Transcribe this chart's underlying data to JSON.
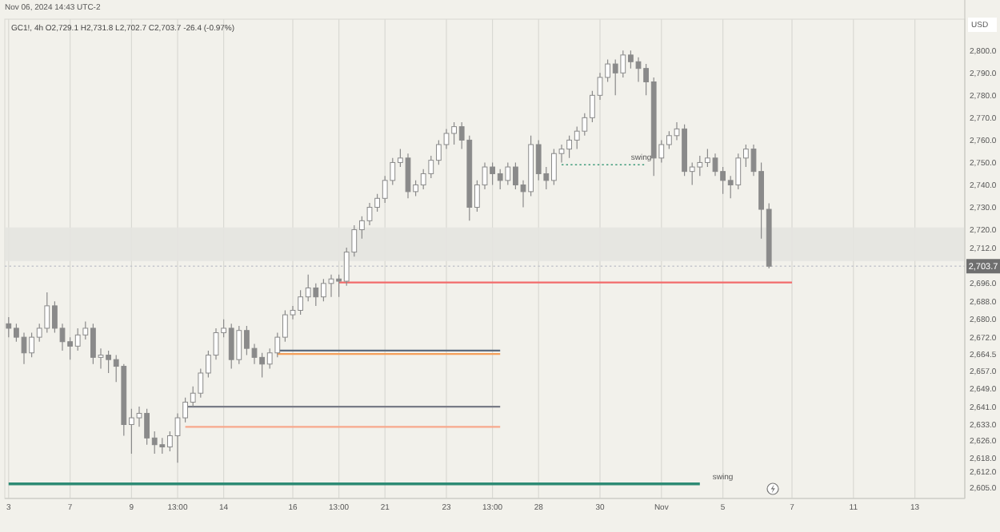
{
  "chart_data": {
    "type": "candlestick",
    "title": "GC1!, 4h O2,729.1 H2,731.8 L2,702.7 C2,703.7 -26.4 (-0.97%)",
    "subtitle": "Nov 06, 2024 14:43 UTC-2",
    "ylabel": "USD",
    "categories": [
      "3",
      null,
      null,
      null,
      null,
      null,
      null,
      null,
      "7",
      null,
      null,
      null,
      null,
      null,
      null,
      null,
      "9",
      null,
      null,
      null,
      null,
      null,
      "13:00",
      null,
      null,
      null,
      null,
      null,
      "14",
      null,
      null,
      null,
      null,
      null,
      null,
      null,
      null,
      "16",
      null,
      null,
      null,
      null,
      null,
      "13:00",
      null,
      null,
      null,
      null,
      null,
      "21",
      null,
      null,
      null,
      null,
      null,
      null,
      null,
      "23",
      null,
      null,
      null,
      null,
      null,
      "13:00",
      null,
      null,
      null,
      null,
      null,
      "28",
      null,
      null,
      null,
      null,
      null,
      null,
      null,
      "30",
      null,
      null,
      null,
      null,
      null,
      null,
      null,
      "Nov",
      null,
      null,
      null,
      null,
      null,
      null,
      null,
      "5",
      null,
      null,
      null,
      null,
      null,
      null,
      null,
      null,
      "7",
      null,
      null,
      null,
      null,
      null,
      null,
      null,
      "11",
      null,
      null,
      null,
      null,
      null,
      null,
      null,
      "13",
      null,
      null,
      null,
      null,
      null,
      null
    ],
    "ohlc": [
      [
        2678,
        2681,
        2672,
        2676
      ],
      [
        2676,
        2678,
        2670,
        2672
      ],
      [
        2672,
        2674,
        2660,
        2665
      ],
      [
        2665,
        2674,
        2663,
        2672
      ],
      [
        2672,
        2678,
        2670,
        2676
      ],
      [
        2676,
        2692,
        2674,
        2686
      ],
      [
        2686,
        2688,
        2674,
        2676
      ],
      [
        2676,
        2678,
        2666,
        2670
      ],
      [
        2670,
        2672,
        2662,
        2668
      ],
      [
        2668,
        2676,
        2666,
        2673
      ],
      [
        2673,
        2679,
        2671,
        2676
      ],
      [
        2676,
        2678,
        2660,
        2663
      ],
      [
        2663,
        2667,
        2658,
        2664
      ],
      [
        2664,
        2666,
        2656,
        2662
      ],
      [
        2662,
        2664,
        2652,
        2659
      ],
      [
        2659,
        2660,
        2628,
        2633
      ],
      [
        2633,
        2640,
        2620,
        2636
      ],
      [
        2636,
        2641,
        2632,
        2638
      ],
      [
        2638,
        2640,
        2624,
        2627
      ],
      [
        2627,
        2630,
        2620,
        2624
      ],
      [
        2624,
        2627,
        2620,
        2623
      ],
      [
        2623,
        2630,
        2621,
        2628
      ],
      [
        2628,
        2638,
        2616,
        2636
      ],
      [
        2636,
        2645,
        2634,
        2643
      ],
      [
        2643,
        2650,
        2641,
        2647
      ],
      [
        2647,
        2658,
        2645,
        2656
      ],
      [
        2656,
        2666,
        2654,
        2664
      ],
      [
        2664,
        2676,
        2662,
        2674
      ],
      [
        2674,
        2680,
        2672,
        2676
      ],
      [
        2676,
        2678,
        2658,
        2662
      ],
      [
        2662,
        2677,
        2660,
        2675
      ],
      [
        2675,
        2677,
        2664,
        2667
      ],
      [
        2667,
        2669,
        2660,
        2663
      ],
      [
        2663,
        2665,
        2654,
        2660
      ],
      [
        2660,
        2667,
        2658,
        2665
      ],
      [
        2665,
        2674,
        2663,
        2672
      ],
      [
        2672,
        2684,
        2670,
        2682
      ],
      [
        2682,
        2686,
        2680,
        2684
      ],
      [
        2684,
        2693,
        2682,
        2690
      ],
      [
        2690,
        2700,
        2688,
        2694
      ],
      [
        2694,
        2696,
        2686,
        2690
      ],
      [
        2690,
        2698,
        2688,
        2696
      ],
      [
        2696,
        2700,
        2690,
        2698
      ],
      [
        2698,
        2700,
        2690,
        2697
      ],
      [
        2697,
        2712,
        2695,
        2710
      ],
      [
        2710,
        2722,
        2708,
        2720
      ],
      [
        2720,
        2726,
        2716,
        2724
      ],
      [
        2724,
        2732,
        2722,
        2730
      ],
      [
        2730,
        2736,
        2728,
        2734
      ],
      [
        2734,
        2744,
        2732,
        2742
      ],
      [
        2742,
        2752,
        2740,
        2750
      ],
      [
        2750,
        2756,
        2748,
        2752
      ],
      [
        2752,
        2754,
        2734,
        2737
      ],
      [
        2737,
        2742,
        2735,
        2740
      ],
      [
        2740,
        2747,
        2738,
        2745
      ],
      [
        2745,
        2753,
        2743,
        2751
      ],
      [
        2751,
        2760,
        2749,
        2758
      ],
      [
        2758,
        2765,
        2756,
        2763
      ],
      [
        2763,
        2768,
        2758,
        2766
      ],
      [
        2766,
        2768,
        2756,
        2760
      ],
      [
        2760,
        2762,
        2724,
        2730
      ],
      [
        2730,
        2742,
        2728,
        2740
      ],
      [
        2740,
        2750,
        2738,
        2748
      ],
      [
        2748,
        2750,
        2740,
        2745
      ],
      [
        2745,
        2747,
        2738,
        2742
      ],
      [
        2742,
        2750,
        2740,
        2748
      ],
      [
        2748,
        2750,
        2738,
        2740
      ],
      [
        2740,
        2742,
        2730,
        2737
      ],
      [
        2737,
        2762,
        2735,
        2758
      ],
      [
        2758,
        2760,
        2742,
        2745
      ],
      [
        2745,
        2748,
        2738,
        2742
      ],
      [
        2742,
        2756,
        2740,
        2754
      ],
      [
        2754,
        2758,
        2750,
        2756
      ],
      [
        2756,
        2762,
        2752,
        2760
      ],
      [
        2760,
        2766,
        2756,
        2764
      ],
      [
        2764,
        2772,
        2762,
        2770
      ],
      [
        2770,
        2782,
        2768,
        2780
      ],
      [
        2780,
        2790,
        2778,
        2788
      ],
      [
        2788,
        2796,
        2786,
        2794
      ],
      [
        2794,
        2796,
        2780,
        2790
      ],
      [
        2790,
        2800,
        2788,
        2798
      ],
      [
        2798,
        2800,
        2792,
        2795
      ],
      [
        2795,
        2797,
        2786,
        2792
      ],
      [
        2792,
        2794,
        2780,
        2786
      ],
      [
        2786,
        2788,
        2744,
        2752
      ],
      [
        2752,
        2760,
        2750,
        2758
      ],
      [
        2758,
        2764,
        2756,
        2762
      ],
      [
        2762,
        2768,
        2760,
        2765
      ],
      [
        2765,
        2767,
        2744,
        2746
      ],
      [
        2746,
        2750,
        2740,
        2748
      ],
      [
        2748,
        2753,
        2744,
        2750
      ],
      [
        2750,
        2756,
        2748,
        2752
      ],
      [
        2752,
        2754,
        2744,
        2746
      ],
      [
        2746,
        2748,
        2736,
        2742
      ],
      [
        2742,
        2744,
        2734,
        2740
      ],
      [
        2740,
        2754,
        2738,
        2752
      ],
      [
        2752,
        2758,
        2748,
        2756
      ],
      [
        2756,
        2758,
        2744,
        2746
      ],
      [
        2746,
        2750,
        2716,
        2729.1
      ],
      [
        2729.1,
        2731.8,
        2702.7,
        2703.7
      ],
      null,
      null,
      null,
      null,
      null,
      null,
      null,
      null,
      null,
      null,
      null,
      null,
      null,
      null,
      null,
      null,
      null,
      null,
      null,
      null,
      null,
      null,
      null,
      null,
      null
    ],
    "color": "#8a8a8a",
    "series": [
      {
        "type": "line",
        "values": [
          null,
          null,
          null,
          null,
          null,
          null,
          null,
          null,
          null,
          null,
          null,
          null,
          null,
          null,
          null,
          null,
          null,
          null,
          null,
          null,
          null,
          null,
          null,
          null,
          null,
          null,
          null,
          null,
          null,
          null,
          null,
          null,
          null,
          null,
          null,
          null,
          null,
          null,
          null,
          null,
          null,
          null,
          null,
          2696.4,
          2696.4,
          2696.4,
          2696.4,
          2696.4,
          2696.4,
          2696.4,
          2696.4,
          2696.4,
          2696.4,
          2696.4,
          2696.4,
          2696.4,
          2696.4,
          2696.4,
          2696.4,
          2696.4,
          2696.4,
          2696.4,
          2696.4,
          2696.4,
          2696.4,
          2696.4,
          2696.4,
          2696.4,
          2696.4,
          2696.4,
          2696.4,
          2696.4,
          2696.4,
          2696.4,
          2696.4,
          2696.4,
          2696.4,
          2696.4,
          2696.4,
          2696.4,
          2696.4,
          2696.4,
          2696.4,
          2696.4,
          2696.4,
          2696.4,
          2696.4,
          2696.4,
          2696.4,
          2696.4,
          2696.4,
          2696.4,
          2696.4,
          2696.4,
          2696.4,
          2696.4,
          2696.4,
          2696.4,
          2696.4,
          2696.4,
          2696.4,
          2696.4,
          2696.4,
          null,
          null,
          null,
          null,
          null,
          null,
          null,
          null,
          null,
          null,
          null,
          null,
          null,
          null,
          null,
          null,
          null,
          null,
          null,
          null,
          null,
          null
        ],
        "color": "#f26b6b"
      },
      {
        "type": "line",
        "values": [
          null,
          null,
          null,
          null,
          null,
          null,
          null,
          null,
          null,
          null,
          null,
          null,
          null,
          null,
          null,
          null,
          null,
          null,
          null,
          null,
          null,
          null,
          null,
          null,
          null,
          null,
          null,
          null,
          null,
          null,
          null,
          null,
          null,
          null,
          null,
          2666,
          2666,
          2666,
          2666,
          2666,
          2666,
          2666,
          2666,
          2666,
          2666,
          2666,
          2666,
          2666,
          2666,
          2666,
          2666,
          2666,
          2666,
          2666,
          2666,
          2666,
          2666,
          2666,
          2666,
          2666,
          2666,
          2666,
          2666,
          2666,
          2666,
          null,
          null,
          null,
          null,
          null,
          null,
          null,
          null,
          null,
          null,
          null,
          null,
          null,
          null,
          null,
          null,
          null,
          null,
          null,
          null,
          null,
          null,
          null,
          null,
          null,
          null,
          null,
          null,
          null,
          null,
          null,
          null,
          null,
          null,
          null,
          null,
          null,
          null,
          null,
          null,
          null,
          null,
          null,
          null,
          null,
          null,
          null,
          null,
          null,
          null,
          null,
          null,
          null,
          null,
          null,
          null,
          null,
          null,
          null,
          null
        ],
        "color": "#5d6b7d"
      },
      {
        "type": "line",
        "values": [
          null,
          null,
          null,
          null,
          null,
          null,
          null,
          null,
          null,
          null,
          null,
          null,
          null,
          null,
          null,
          null,
          null,
          null,
          null,
          null,
          null,
          null,
          null,
          null,
          null,
          null,
          null,
          null,
          null,
          null,
          null,
          null,
          null,
          null,
          null,
          2664.5,
          2664.5,
          2664.5,
          2664.5,
          2664.5,
          2664.5,
          2664.5,
          2664.5,
          2664.5,
          2664.5,
          2664.5,
          2664.5,
          2664.5,
          2664.5,
          2664.5,
          2664.5,
          2664.5,
          2664.5,
          2664.5,
          2664.5,
          2664.5,
          2664.5,
          2664.5,
          2664.5,
          2664.5,
          2664.5,
          2664.5,
          2664.5,
          2664.5,
          2664.5,
          null,
          null,
          null,
          null,
          null,
          null,
          null,
          null,
          null,
          null,
          null,
          null,
          null,
          null,
          null,
          null,
          null,
          null,
          null,
          null,
          null,
          null,
          null,
          null,
          null,
          null,
          null,
          null,
          null,
          null,
          null,
          null,
          null,
          null,
          null,
          null,
          null,
          null,
          null,
          null,
          null,
          null,
          null,
          null,
          null,
          null,
          null,
          null,
          null,
          null,
          null,
          null,
          null,
          null,
          null,
          null,
          null,
          null,
          null,
          null
        ],
        "color": "#f5a05a"
      },
      {
        "type": "line",
        "values": [
          null,
          null,
          null,
          null,
          null,
          null,
          null,
          null,
          null,
          null,
          null,
          null,
          null,
          null,
          null,
          null,
          null,
          null,
          null,
          null,
          null,
          null,
          null,
          2641,
          2641,
          2641,
          2641,
          2641,
          2641,
          2641,
          2641,
          2641,
          2641,
          2641,
          2641,
          2641,
          2641,
          2641,
          2641,
          2641,
          2641,
          2641,
          2641,
          2641,
          2641,
          2641,
          2641,
          2641,
          2641,
          2641,
          2641,
          2641,
          2641,
          2641,
          2641,
          2641,
          2641,
          2641,
          2641,
          2641,
          2641,
          2641,
          2641,
          2641,
          2641,
          null,
          null,
          null,
          null,
          null,
          null,
          null,
          null,
          null,
          null,
          null,
          null,
          null,
          null,
          null,
          null,
          null,
          null,
          null,
          null,
          null,
          null,
          null,
          null,
          null,
          null,
          null,
          null,
          null,
          null,
          null,
          null,
          null,
          null,
          null,
          null,
          null,
          null,
          null,
          null,
          null,
          null,
          null,
          null,
          null,
          null,
          null,
          null,
          null,
          null,
          null,
          null,
          null,
          null,
          null,
          null,
          null,
          null,
          null,
          null
        ],
        "color": "#787b86"
      },
      {
        "type": "line",
        "values": [
          null,
          null,
          null,
          null,
          null,
          null,
          null,
          null,
          null,
          null,
          null,
          null,
          null,
          null,
          null,
          null,
          null,
          null,
          null,
          null,
          null,
          null,
          null,
          2632,
          2632,
          2632,
          2632,
          2632,
          2632,
          2632,
          2632,
          2632,
          2632,
          2632,
          2632,
          2632,
          2632,
          2632,
          2632,
          2632,
          2632,
          2632,
          2632,
          2632,
          2632,
          2632,
          2632,
          2632,
          2632,
          2632,
          2632,
          2632,
          2632,
          2632,
          2632,
          2632,
          2632,
          2632,
          2632,
          2632,
          2632,
          2632,
          2632,
          2632,
          2632,
          null,
          null,
          null,
          null,
          null,
          null,
          null,
          null,
          null,
          null,
          null,
          null,
          null,
          null,
          null,
          null,
          null,
          null,
          null,
          null,
          null,
          null,
          null,
          null,
          null,
          null,
          null,
          null,
          null,
          null,
          null,
          null,
          null,
          null,
          null,
          null,
          null,
          null,
          null,
          null,
          null,
          null,
          null,
          null,
          null,
          null,
          null,
          null,
          null,
          null,
          null,
          null,
          null,
          null,
          null,
          null,
          null,
          null,
          null,
          null
        ],
        "color": "#f7a88c"
      },
      {
        "type": "line",
        "values": [
          2606.5,
          2606.5,
          2606.5,
          2606.5,
          2606.5,
          2606.5,
          2606.5,
          2606.5,
          2606.5,
          2606.5,
          2606.5,
          2606.5,
          2606.5,
          2606.5,
          2606.5,
          2606.5,
          2606.5,
          2606.5,
          2606.5,
          2606.5,
          2606.5,
          2606.5,
          2606.5,
          2606.5,
          2606.5,
          2606.5,
          2606.5,
          2606.5,
          2606.5,
          2606.5,
          2606.5,
          2606.5,
          2606.5,
          2606.5,
          2606.5,
          2606.5,
          2606.5,
          2606.5,
          2606.5,
          2606.5,
          2606.5,
          2606.5,
          2606.5,
          2606.5,
          2606.5,
          2606.5,
          2606.5,
          2606.5,
          2606.5,
          2606.5,
          2606.5,
          2606.5,
          2606.5,
          2606.5,
          2606.5,
          2606.5,
          2606.5,
          2606.5,
          2606.5,
          2606.5,
          2606.5,
          2606.5,
          2606.5,
          2606.5,
          2606.5,
          2606.5,
          2606.5,
          2606.5,
          2606.5,
          2606.5,
          2606.5,
          2606.5,
          2606.5,
          2606.5,
          2606.5,
          2606.5,
          2606.5,
          2606.5,
          2606.5,
          2606.5,
          2606.5,
          2606.5,
          2606.5,
          2606.5,
          2606.5,
          2606.5,
          2606.5,
          2606.5,
          2606.5,
          2606.5,
          2606.5,
          null,
          null,
          null,
          null,
          null,
          null,
          null,
          null,
          null,
          null,
          null,
          null,
          null,
          null,
          null,
          null,
          null,
          null,
          null,
          null,
          null,
          null,
          null,
          null,
          null,
          null,
          null,
          null,
          null,
          null,
          null,
          null,
          null,
          null
        ],
        "color": "#2e8b75"
      },
      {
        "type": "line",
        "values": [
          null,
          null,
          null,
          null,
          null,
          null,
          null,
          null,
          null,
          null,
          null,
          null,
          null,
          null,
          null,
          null,
          null,
          null,
          null,
          null,
          null,
          null,
          null,
          null,
          null,
          null,
          null,
          null,
          null,
          null,
          null,
          null,
          null,
          null,
          null,
          null,
          null,
          null,
          null,
          null,
          null,
          null,
          null,
          null,
          null,
          null,
          null,
          null,
          null,
          null,
          null,
          null,
          null,
          null,
          null,
          null,
          null,
          null,
          null,
          null,
          null,
          null,
          null,
          null,
          null,
          null,
          null,
          null,
          null,
          null,
          null,
          null,
          2749,
          2749,
          2749,
          2749,
          2749,
          2749,
          2749,
          2749,
          2749,
          2749,
          2749,
          2749,
          null,
          null,
          null,
          null,
          null,
          null,
          null,
          null,
          null,
          null,
          null,
          null,
          null,
          null,
          null,
          null,
          null,
          null,
          null,
          null,
          null,
          null,
          null,
          null,
          null,
          null,
          null,
          null,
          null,
          null,
          null,
          null,
          null,
          null,
          null,
          null,
          null,
          null,
          null,
          null,
          null
        ],
        "color": "#3f9b7b",
        "line_style": "dotted"
      }
    ],
    "bands": [
      {
        "axis": "y",
        "from": 2706,
        "to": 2721,
        "color": "#e4e4e0"
      }
    ],
    "ref_lines": [
      {
        "axis": "y",
        "value": 2703.7,
        "label": "2,703.7",
        "color": "#c4c6cc",
        "line_style": "dotted"
      }
    ],
    "annotations": [
      "swing",
      "swing"
    ],
    "ylim": [
      2600,
      2814
    ],
    "yticks": [
      {
        "value": 2800,
        "label": "2,800.0"
      },
      {
        "value": 2790,
        "label": "2,790.0"
      },
      {
        "value": 2780,
        "label": "2,780.0"
      },
      {
        "value": 2770,
        "label": "2,770.0"
      },
      {
        "value": 2760,
        "label": "2,760.0"
      },
      {
        "value": 2750,
        "label": "2,750.0"
      },
      {
        "value": 2740,
        "label": "2,740.0"
      },
      {
        "value": 2730,
        "label": "2,730.0"
      },
      {
        "value": 2720,
        "label": "2,720.0"
      },
      {
        "value": 2712,
        "label": "2,712.0"
      },
      {
        "value": 2696,
        "label": "2,696.0"
      },
      {
        "value": 2688,
        "label": "2,688.0"
      },
      {
        "value": 2680,
        "label": "2,680.0"
      },
      {
        "value": 2672,
        "label": "2,672.0"
      },
      {
        "value": 2664.5,
        "label": "2,664.5"
      },
      {
        "value": 2657,
        "label": "2,657.0"
      },
      {
        "value": 2649,
        "label": "2,649.0"
      },
      {
        "value": 2641,
        "label": "2,641.0"
      },
      {
        "value": 2633,
        "label": "2,633.0"
      },
      {
        "value": 2626,
        "label": "2,626.0"
      },
      {
        "value": 2618,
        "label": "2,618.0"
      },
      {
        "value": 2612,
        "label": "2,612.0"
      },
      {
        "value": 2605,
        "label": "2,605.0"
      }
    ],
    "grid": "x"
  }
}
